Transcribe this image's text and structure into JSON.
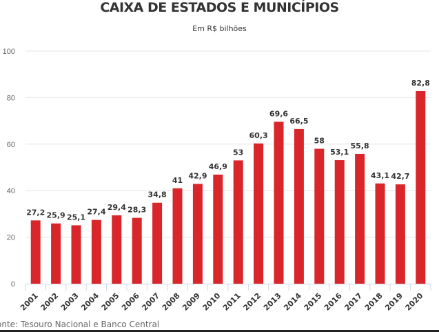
{
  "chart_data": {
    "type": "bar",
    "title": "CAIXA DE ESTADOS E MUNICÍPIOS",
    "subtitle": "Em R$ bilhões",
    "xlabel": "",
    "ylabel": "",
    "ylim": [
      0,
      100
    ],
    "yticks": [
      0,
      20,
      40,
      60,
      80,
      100
    ],
    "grid": true,
    "color": "#d9262b",
    "categories": [
      "2001",
      "2002",
      "2003",
      "2004",
      "2005",
      "2006",
      "2007",
      "2008",
      "2009",
      "2010",
      "2011",
      "2012",
      "2013",
      "2014",
      "2015",
      "2016",
      "2017",
      "2018",
      "2019",
      "2020"
    ],
    "values": [
      27.2,
      25.9,
      25.1,
      27.4,
      29.4,
      28.3,
      34.8,
      41,
      42.9,
      46.9,
      53,
      60.3,
      69.6,
      66.5,
      58,
      53.1,
      55.8,
      43.1,
      42.7,
      82.8
    ],
    "data_labels": [
      "27,2",
      "25,9",
      "25,1",
      "27,4",
      "29,4",
      "28,3",
      "34,8",
      "41",
      "42,9",
      "46,9",
      "53",
      "60,3",
      "69,6",
      "66,5",
      "58",
      "53,1",
      "55,8",
      "43,1",
      "42,7",
      "82,8"
    ],
    "source": "onte: Tesouro Nacional e Banco Central"
  }
}
